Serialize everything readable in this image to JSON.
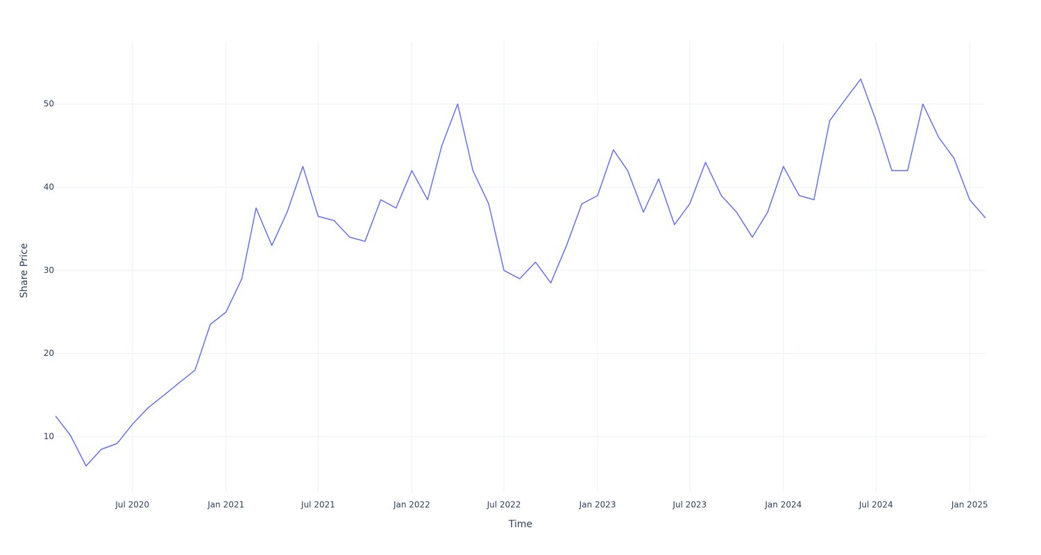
{
  "chart_data": {
    "type": "line",
    "xlabel": "Time",
    "ylabel": "Share Price",
    "x": [
      "2020-02",
      "2020-03",
      "2020-04",
      "2020-05",
      "2020-06",
      "2020-07",
      "2020-08",
      "2020-09",
      "2020-10",
      "2020-11",
      "2020-12",
      "2021-01",
      "2021-02",
      "2021-03",
      "2021-04",
      "2021-05",
      "2021-06",
      "2021-07",
      "2021-08",
      "2021-09",
      "2021-10",
      "2021-11",
      "2021-12",
      "2022-01",
      "2022-02",
      "2022-03",
      "2022-04",
      "2022-05",
      "2022-06",
      "2022-07",
      "2022-08",
      "2022-09",
      "2022-10",
      "2022-11",
      "2022-12",
      "2023-01",
      "2023-02",
      "2023-03",
      "2023-04",
      "2023-05",
      "2023-06",
      "2023-07",
      "2023-08",
      "2023-09",
      "2023-10",
      "2023-11",
      "2023-12",
      "2024-01",
      "2024-02",
      "2024-03",
      "2024-04",
      "2024-05",
      "2024-06",
      "2024-07",
      "2024-08",
      "2024-09",
      "2024-10",
      "2024-11",
      "2024-12",
      "2025-01",
      "2025-02"
    ],
    "series": [
      {
        "name": "Share Price",
        "color": "#636efa",
        "values": [
          12.5,
          10.2,
          6.5,
          8.5,
          9.2,
          11.5,
          13.5,
          15,
          16.5,
          18,
          23.5,
          25,
          29,
          37.5,
          33,
          37,
          42.5,
          36.5,
          36,
          34,
          33.5,
          38.5,
          37.5,
          42,
          38.5,
          45,
          50,
          42,
          38,
          30,
          29,
          31,
          28.5,
          33,
          38,
          39,
          44.5,
          42,
          37,
          41,
          35.5,
          38,
          43,
          39,
          37,
          34,
          37,
          42.5,
          39,
          38.5,
          48,
          50.5,
          53,
          48,
          42,
          42,
          50,
          46,
          43.5,
          38.5,
          36.3
        ]
      }
    ],
    "xlim": [
      "2020-02",
      "2025-02"
    ],
    "xticks": [
      {
        "value": "2020-07",
        "label": "Jul 2020"
      },
      {
        "value": "2021-01",
        "label": "Jan 2021"
      },
      {
        "value": "2021-07",
        "label": "Jul 2021"
      },
      {
        "value": "2022-01",
        "label": "Jan 2022"
      },
      {
        "value": "2022-07",
        "label": "Jul 2022"
      },
      {
        "value": "2023-01",
        "label": "Jan 2023"
      },
      {
        "value": "2023-07",
        "label": "Jul 2023"
      },
      {
        "value": "2024-01",
        "label": "Jan 2024"
      },
      {
        "value": "2024-07",
        "label": "Jul 2024"
      },
      {
        "value": "2025-01",
        "label": "Jan 2025"
      }
    ],
    "ylim": [
      3.3,
      57.5
    ],
    "yticks": [
      10,
      20,
      30,
      40,
      50
    ],
    "grid": true
  }
}
